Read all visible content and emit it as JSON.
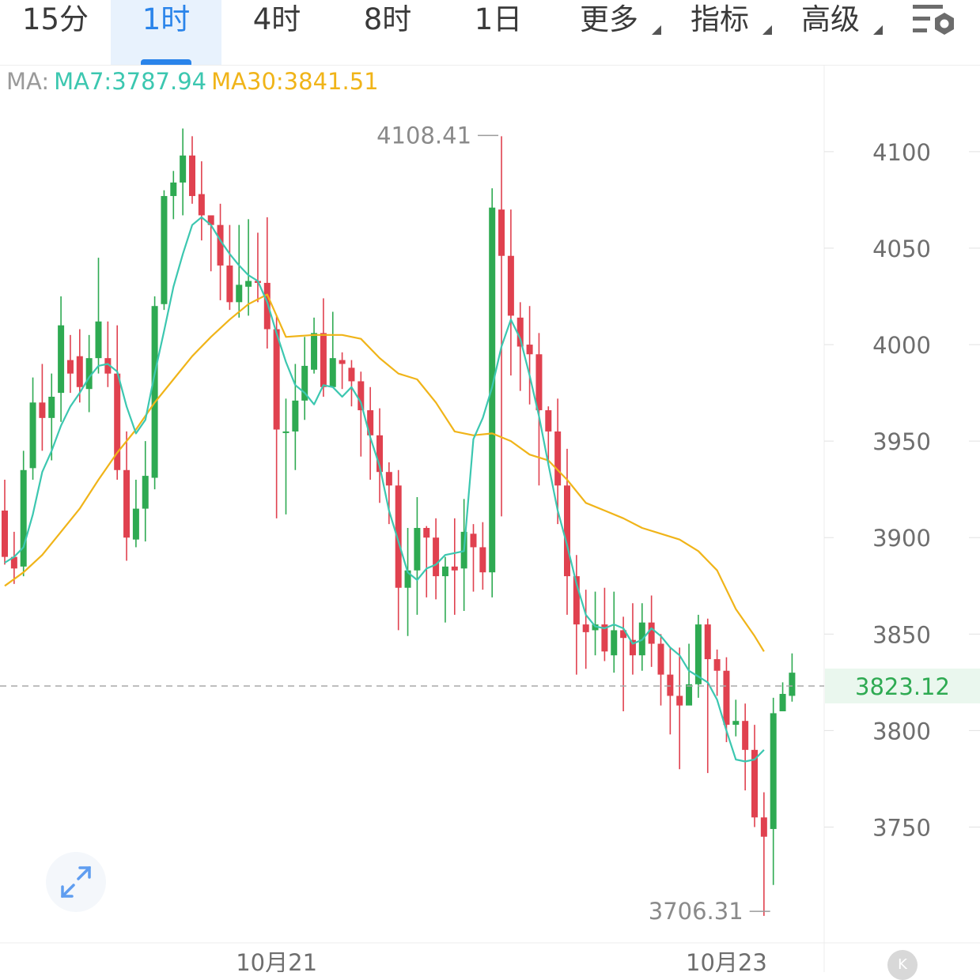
{
  "tabs": [
    {
      "label": "15分",
      "active": false
    },
    {
      "label": "1时",
      "active": true
    },
    {
      "label": "4时",
      "active": false
    },
    {
      "label": "8时",
      "active": false
    },
    {
      "label": "1日",
      "active": false
    },
    {
      "label": "更多",
      "active": false,
      "dropdown": true
    },
    {
      "label": "指标",
      "active": false,
      "dropdown": true
    },
    {
      "label": "高级",
      "active": false,
      "dropdown": true
    }
  ],
  "settings_icon": "chart-settings-icon",
  "ma_legend": {
    "prefix": "MA:",
    "ma7": "MA7:3787.94",
    "ma30": "MA30:3841.51"
  },
  "expand_icon": "expand-icon",
  "logo_text": "K",
  "colors": {
    "up": "#2eaa52",
    "down": "#e0414f",
    "ma7": "#3cc7b0",
    "ma30": "#f0b419",
    "current": "#2eaa52"
  },
  "chart_data": {
    "type": "candlestick",
    "interval": "1时",
    "ylim": [
      3690,
      4145
    ],
    "y_ticks": [
      "4100",
      "4050",
      "4000",
      "3950",
      "3900",
      "3850",
      "3800",
      "3750"
    ],
    "x_labels": [
      {
        "label": "10月21",
        "index": 29
      },
      {
        "label": "10月23",
        "index": 77
      }
    ],
    "current_price": "3823.12",
    "max_label": {
      "value": "4108.41",
      "index": 53
    },
    "min_label": {
      "value": "3706.31",
      "index": 82
    },
    "candles": [
      [
        3914,
        3890,
        3930,
        3886
      ],
      [
        3890,
        3884,
        3903,
        3876
      ],
      [
        3885,
        3935,
        3945,
        3880
      ],
      [
        3936,
        3970,
        3983,
        3930
      ],
      [
        3970,
        3962,
        3990,
        3945
      ],
      [
        3962,
        3973,
        3985,
        3940
      ],
      [
        3975,
        4010,
        4025,
        3960
      ],
      [
        3992,
        3985,
        4005,
        3975
      ],
      [
        3994,
        3978,
        4008,
        3970
      ],
      [
        3977,
        3993,
        4005,
        3965
      ],
      [
        3993,
        4012,
        4045,
        3985
      ],
      [
        3993,
        3985,
        4012,
        3978
      ],
      [
        3985,
        3935,
        4010,
        3930
      ],
      [
        3935,
        3900,
        3955,
        3888
      ],
      [
        3899,
        3915,
        3930,
        3895
      ],
      [
        3915,
        3932,
        3950,
        3898
      ],
      [
        3931,
        4020,
        4025,
        3925
      ],
      [
        4021,
        4077,
        4080,
        4018
      ],
      [
        4077,
        4084,
        4090,
        4065
      ],
      [
        4084,
        4098,
        4112,
        4067
      ],
      [
        4098,
        4077,
        4108,
        4073
      ],
      [
        4078,
        4067,
        4095,
        4054
      ],
      [
        4067,
        4062,
        4065,
        4038
      ],
      [
        4062,
        4041,
        4073,
        4023
      ],
      [
        4041,
        4022,
        4062,
        4018
      ],
      [
        4022,
        4031,
        4062,
        4014
      ],
      [
        4030,
        4033,
        4065,
        4015
      ],
      [
        4033,
        4032,
        4058,
        4022
      ],
      [
        4032,
        4008,
        4066,
        3998
      ],
      [
        4008,
        3956,
        4015,
        3910
      ],
      [
        3955,
        3955,
        3972,
        3912
      ],
      [
        3955,
        3971,
        3990,
        3935
      ],
      [
        3971,
        3989,
        4004,
        3961
      ],
      [
        3987,
        4006,
        4014,
        3985
      ],
      [
        4006,
        3978,
        4024,
        3973
      ],
      [
        3978,
        3993,
        4017,
        3978
      ],
      [
        3992,
        3990,
        3996,
        3977
      ],
      [
        3988,
        3981,
        3992,
        3968
      ],
      [
        3981,
        3966,
        3986,
        3942
      ],
      [
        3966,
        3953,
        3978,
        3930
      ],
      [
        3953,
        3934,
        3967,
        3918
      ],
      [
        3934,
        3927,
        3939,
        3907
      ],
      [
        3927,
        3874,
        3935,
        3852
      ],
      [
        3874,
        3883,
        3905,
        3849
      ],
      [
        3883,
        3905,
        3921,
        3860
      ],
      [
        3905,
        3900,
        3906,
        3869
      ],
      [
        3900,
        3880,
        3910,
        3868
      ],
      [
        3880,
        3885,
        3890,
        3856
      ],
      [
        3885,
        3883,
        3910,
        3860
      ],
      [
        3884,
        3903,
        3920,
        3862
      ],
      [
        3902,
        3895,
        3907,
        3872
      ],
      [
        3895,
        3882,
        3908,
        3873
      ],
      [
        3882,
        4071,
        4081,
        3869
      ],
      [
        4070,
        4046,
        4108,
        3911
      ],
      [
        4046,
        4015,
        4070,
        3984
      ],
      [
        4014,
        3999,
        4022,
        3976
      ],
      [
        4000,
        3995,
        4020,
        3969
      ],
      [
        3995,
        3966,
        4006,
        3927
      ],
      [
        3966,
        3955,
        3968,
        3938
      ],
      [
        3955,
        3927,
        3972,
        3907
      ],
      [
        3927,
        3880,
        3946,
        3860
      ],
      [
        3880,
        3855,
        3891,
        3829
      ],
      [
        3855,
        3851,
        3873,
        3832
      ],
      [
        3852,
        3855,
        3872,
        3839
      ],
      [
        3855,
        3841,
        3874,
        3836
      ],
      [
        3839,
        3852,
        3872,
        3830
      ],
      [
        3852,
        3848,
        3859,
        3810
      ],
      [
        3847,
        3839,
        3866,
        3829
      ],
      [
        3839,
        3856,
        3866,
        3831
      ],
      [
        3856,
        3845,
        3870,
        3833
      ],
      [
        3845,
        3829,
        3850,
        3813
      ],
      [
        3829,
        3818,
        3843,
        3798
      ],
      [
        3818,
        3813,
        3843,
        3780
      ],
      [
        3813,
        3824,
        3845,
        3814
      ],
      [
        3824,
        3855,
        3860,
        3817
      ],
      [
        3855,
        3837,
        3858,
        3778
      ],
      [
        3837,
        3831,
        3842,
        3818
      ],
      [
        3831,
        3803,
        3838,
        3794
      ],
      [
        3803,
        3805,
        3816,
        3797
      ],
      [
        3805,
        3790,
        3814,
        3769
      ],
      [
        3790,
        3755,
        3803,
        3750
      ],
      [
        3755,
        3745,
        3768,
        3704
      ],
      [
        3749,
        3809,
        3817,
        3720
      ],
      [
        3810,
        3819,
        3825,
        3811
      ],
      [
        3818,
        3830,
        3840,
        3815
      ]
    ],
    "ma7": [
      [
        0,
        3887
      ],
      [
        1,
        3890
      ],
      [
        2,
        3895
      ],
      [
        3,
        3912
      ],
      [
        4,
        3934
      ],
      [
        5,
        3945
      ],
      [
        6,
        3958
      ],
      [
        7,
        3968
      ],
      [
        8,
        3975
      ],
      [
        9,
        3983
      ],
      [
        10,
        3989
      ],
      [
        11,
        3990
      ],
      [
        12,
        3986
      ],
      [
        13,
        3968
      ],
      [
        14,
        3954
      ],
      [
        15,
        3961
      ],
      [
        16,
        3985
      ],
      [
        17,
        4007
      ],
      [
        18,
        4030
      ],
      [
        19,
        4047
      ],
      [
        20,
        4062
      ],
      [
        21,
        4066
      ],
      [
        22,
        4062
      ],
      [
        23,
        4054
      ],
      [
        24,
        4047
      ],
      [
        25,
        4041
      ],
      [
        26,
        4036
      ],
      [
        27,
        4033
      ],
      [
        28,
        4022
      ],
      [
        29,
        4006
      ],
      [
        30,
        3991
      ],
      [
        31,
        3979
      ],
      [
        32,
        3975
      ],
      [
        33,
        3969
      ],
      [
        34,
        3979
      ],
      [
        35,
        3978
      ],
      [
        36,
        3973
      ],
      [
        37,
        3978
      ],
      [
        38,
        3970
      ],
      [
        39,
        3952
      ],
      [
        40,
        3937
      ],
      [
        41,
        3914
      ],
      [
        42,
        3898
      ],
      [
        43,
        3882
      ],
      [
        44,
        3878
      ],
      [
        45,
        3884
      ],
      [
        46,
        3886
      ],
      [
        47,
        3891
      ],
      [
        48,
        3892
      ],
      [
        49,
        3893
      ],
      [
        50,
        3951
      ],
      [
        51,
        3962
      ],
      [
        52,
        3978
      ],
      [
        53,
        3999
      ],
      [
        54,
        4013
      ],
      [
        55,
        4003
      ],
      [
        56,
        3984
      ],
      [
        57,
        3963
      ],
      [
        58,
        3938
      ],
      [
        59,
        3914
      ],
      [
        60,
        3896
      ],
      [
        61,
        3876
      ],
      [
        62,
        3860
      ],
      [
        63,
        3854
      ],
      [
        64,
        3853
      ],
      [
        65,
        3855
      ],
      [
        66,
        3853
      ],
      [
        67,
        3845
      ],
      [
        68,
        3847
      ],
      [
        69,
        3853
      ],
      [
        70,
        3849
      ],
      [
        71,
        3843
      ],
      [
        72,
        3839
      ],
      [
        73,
        3831
      ],
      [
        74,
        3828
      ],
      [
        75,
        3825
      ],
      [
        76,
        3816
      ],
      [
        77,
        3800
      ],
      [
        78,
        3785
      ],
      [
        79,
        3784
      ],
      [
        80,
        3785
      ],
      [
        81,
        3790
      ]
    ],
    "ma30": [
      [
        0,
        3875
      ],
      [
        2,
        3882
      ],
      [
        4,
        3891
      ],
      [
        6,
        3903
      ],
      [
        8,
        3915
      ],
      [
        10,
        3930
      ],
      [
        12,
        3944
      ],
      [
        14,
        3956
      ],
      [
        16,
        3970
      ],
      [
        18,
        3982
      ],
      [
        20,
        3994
      ],
      [
        22,
        4004
      ],
      [
        24,
        4013
      ],
      [
        26,
        4021
      ],
      [
        28,
        4026
      ],
      [
        30,
        4004
      ],
      [
        33,
        4005
      ],
      [
        36,
        4005
      ],
      [
        38,
        4003
      ],
      [
        40,
        3993
      ],
      [
        42,
        3985
      ],
      [
        44,
        3982
      ],
      [
        46,
        3970
      ],
      [
        48,
        3955
      ],
      [
        50,
        3953
      ],
      [
        52,
        3954
      ],
      [
        54,
        3950
      ],
      [
        56,
        3943
      ],
      [
        58,
        3940
      ],
      [
        60,
        3930
      ],
      [
        62,
        3918
      ],
      [
        64,
        3914
      ],
      [
        66,
        3910
      ],
      [
        68,
        3905
      ],
      [
        70,
        3902
      ],
      [
        72,
        3899
      ],
      [
        74,
        3893
      ],
      [
        76,
        3883
      ],
      [
        78,
        3863
      ],
      [
        80,
        3849
      ],
      [
        81,
        3841
      ]
    ]
  }
}
